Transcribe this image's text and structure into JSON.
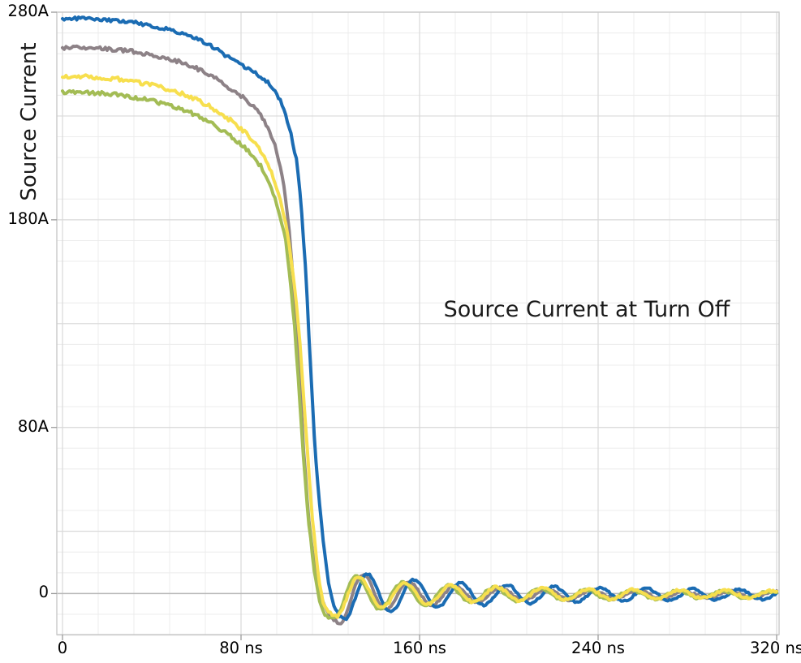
{
  "chart_data": {
    "type": "line",
    "title": "Source Current at Turn Off",
    "xlabel": "",
    "ylabel": "Source Current",
    "x_unit": "ns",
    "y_unit": "A",
    "xlim": [
      0,
      321
    ],
    "ylim": [
      -20,
      280
    ],
    "legend": "none",
    "grid": {
      "on": true,
      "x_minor_step": 16,
      "y_minor_step": 10,
      "x_major_step": 80,
      "y_major_step": 50,
      "minor_color": "#ececec",
      "major_color": "#d9d9d9",
      "zero_color": "#b9b9b9",
      "border_color": "#c9c9c9",
      "tick_color": "#9b9b9b"
    },
    "x_ticks": [
      {
        "t": 0,
        "label": "0"
      },
      {
        "t": 80,
        "label": "80 ns"
      },
      {
        "t": 160,
        "label": "160 ns"
      },
      {
        "t": 240,
        "label": "240 ns"
      },
      {
        "t": 320,
        "label": "320 ns"
      }
    ],
    "y_ticks": [
      {
        "v": 280,
        "label": "280A"
      },
      {
        "v": 180,
        "label": "180A"
      },
      {
        "v": 80,
        "label": "80A"
      },
      {
        "v": 0,
        "label": "0"
      }
    ],
    "series": [
      {
        "name": "gray",
        "color": "#8d8287",
        "width": 4,
        "noise": 0.9,
        "seed": 2,
        "points": [
          [
            0,
            263
          ],
          [
            8,
            263
          ],
          [
            16,
            262.5
          ],
          [
            24,
            262
          ],
          [
            32,
            261
          ],
          [
            40,
            259.5
          ],
          [
            48,
            257.5
          ],
          [
            54,
            255.5
          ],
          [
            60,
            253
          ],
          [
            66,
            250
          ],
          [
            71,
            246.5
          ],
          [
            74,
            244
          ],
          [
            78,
            241
          ],
          [
            82,
            238
          ],
          [
            86,
            234
          ],
          [
            89,
            230
          ],
          [
            92,
            224.5
          ],
          [
            95,
            217
          ],
          [
            98,
            204
          ],
          [
            100,
            190
          ],
          [
            102,
            170
          ],
          [
            104,
            143
          ],
          [
            106,
            110
          ],
          [
            108,
            70
          ],
          [
            110,
            40
          ],
          [
            112,
            20
          ],
          [
            114,
            7
          ],
          [
            116,
            -2
          ],
          [
            118,
            -8
          ],
          [
            121,
            -12.5
          ],
          [
            123,
            -14
          ]
        ],
        "ring": {
          "t_min": 124.7,
          "A0": 14,
          "mid": -0.5,
          "T": 20.5,
          "c": 0.045
        }
      },
      {
        "name": "blue",
        "color": "#1b6cb3",
        "width": 4,
        "noise": 0.8,
        "seed": 1,
        "points": [
          [
            0,
            277
          ],
          [
            8,
            277
          ],
          [
            16,
            276.5
          ],
          [
            24,
            275.8
          ],
          [
            32,
            275
          ],
          [
            40,
            273.5
          ],
          [
            48,
            271.5
          ],
          [
            56,
            269
          ],
          [
            62,
            266.5
          ],
          [
            68,
            263
          ],
          [
            74,
            258.5
          ],
          [
            80,
            254.5
          ],
          [
            86,
            251
          ],
          [
            90,
            248
          ],
          [
            93,
            245.5
          ],
          [
            96,
            241
          ],
          [
            99,
            234
          ],
          [
            102,
            223
          ],
          [
            105,
            208
          ],
          [
            107,
            186
          ],
          [
            109,
            155
          ],
          [
            111,
            112
          ],
          [
            113,
            72
          ],
          [
            115,
            45
          ],
          [
            117,
            24
          ],
          [
            119,
            7
          ],
          [
            120.5,
            -2
          ],
          [
            122,
            -7
          ],
          [
            124,
            -10.5
          ],
          [
            126,
            -12.3
          ]
        ],
        "ring": {
          "t_min": 126.5,
          "A0": 12,
          "mid": -0.5,
          "T": 20.8,
          "c": 0.022
        }
      },
      {
        "name": "green",
        "color": "#a3bc55",
        "width": 4,
        "noise": 0.9,
        "seed": 4,
        "points": [
          [
            0,
            241.5
          ],
          [
            8,
            241.5
          ],
          [
            16,
            241
          ],
          [
            24,
            240.5
          ],
          [
            32,
            239
          ],
          [
            40,
            237.5
          ],
          [
            48,
            235
          ],
          [
            54,
            233
          ],
          [
            60,
            230.5
          ],
          [
            66,
            227
          ],
          [
            71,
            223.5
          ],
          [
            74,
            221.5
          ],
          [
            78,
            218
          ],
          [
            82,
            214.5
          ],
          [
            86,
            210
          ],
          [
            89,
            205.5
          ],
          [
            92,
            199.5
          ],
          [
            95,
            191.5
          ],
          [
            98,
            180
          ],
          [
            100,
            170
          ],
          [
            102,
            152
          ],
          [
            104,
            128
          ],
          [
            106,
            98
          ],
          [
            108,
            66
          ],
          [
            110,
            38
          ],
          [
            112,
            18
          ],
          [
            113.5,
            6
          ],
          [
            115,
            -3
          ],
          [
            117,
            -9
          ],
          [
            119,
            -11.5
          ]
        ],
        "ring": {
          "t_min": 121.8,
          "A0": 11.5,
          "mid": -0.5,
          "T": 20.5,
          "c": 0.032
        }
      },
      {
        "name": "yellow",
        "color": "#f7df4e",
        "width": 4,
        "noise": 1.0,
        "seed": 3,
        "points": [
          [
            0,
            249
          ],
          [
            8,
            249
          ],
          [
            16,
            248.5
          ],
          [
            24,
            248
          ],
          [
            32,
            246.5
          ],
          [
            40,
            245
          ],
          [
            48,
            242.5
          ],
          [
            54,
            240.5
          ],
          [
            60,
            238
          ],
          [
            66,
            234.5
          ],
          [
            71,
            231
          ],
          [
            74,
            229
          ],
          [
            78,
            225.5
          ],
          [
            82,
            222
          ],
          [
            86,
            217.5
          ],
          [
            89,
            213
          ],
          [
            92,
            207
          ],
          [
            95,
            199
          ],
          [
            98,
            188
          ],
          [
            100,
            178
          ],
          [
            102,
            165
          ],
          [
            104,
            148
          ],
          [
            106,
            126
          ],
          [
            108,
            96
          ],
          [
            110,
            64
          ],
          [
            112,
            36
          ],
          [
            114,
            14
          ],
          [
            115.5,
            2
          ],
          [
            117,
            -5.5
          ],
          [
            119.5,
            -9.5
          ],
          [
            121.5,
            -10.5
          ]
        ],
        "ring": {
          "t_min": 122.9,
          "A0": 10.8,
          "mid": -0.3,
          "T": 20.5,
          "c": 0.03
        }
      }
    ]
  }
}
